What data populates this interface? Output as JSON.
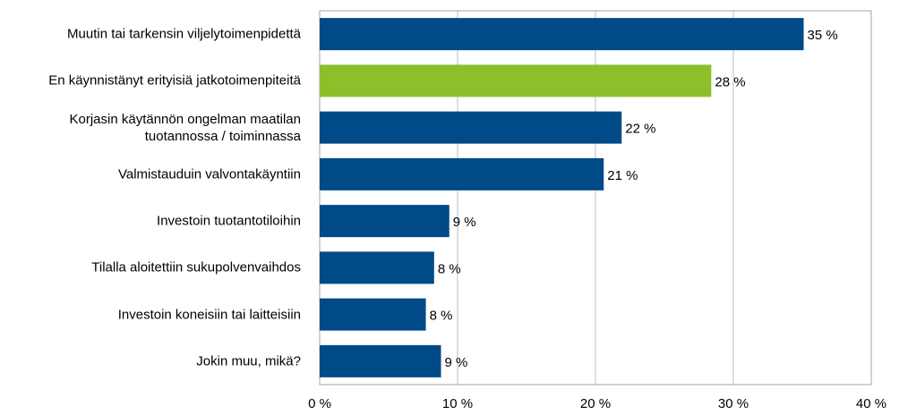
{
  "chart_data": {
    "type": "barh",
    "categories": [
      "Muutin tai tarkensin viljelytoimenpidettä",
      "En käynnistänyt erityisiä jatkotoimenpiteitä",
      "Korjasin käytännön ongelman maatilan\ntuotannossa / toiminnassa",
      "Valmistauduin valvontakäyntiin",
      "Investoin tuotantotiloihin",
      "Tilalla aloitettiin sukupolvenvaihdos",
      "Investoin koneisiin tai laitteisiin",
      "Jokin muu, mikä?"
    ],
    "values": [
      35.1,
      28.4,
      21.9,
      20.6,
      9.4,
      8.3,
      7.7,
      8.8
    ],
    "value_labels": [
      "35 %",
      "28 %",
      "22 %",
      "21 %",
      "9 %",
      "8 %",
      "8 %",
      "9 %"
    ],
    "colors": [
      "#004a87",
      "#8cbf2a",
      "#004a87",
      "#004a87",
      "#004a87",
      "#004a87",
      "#004a87",
      "#004a87"
    ],
    "xlim": [
      0,
      40
    ],
    "xticks": [
      {
        "value": 0,
        "label": "0 %"
      },
      {
        "value": 10,
        "label": "10 %"
      },
      {
        "value": 20,
        "label": "20 %"
      },
      {
        "value": 30,
        "label": "30 %"
      },
      {
        "value": 40,
        "label": "40 %"
      }
    ],
    "grid": true
  }
}
